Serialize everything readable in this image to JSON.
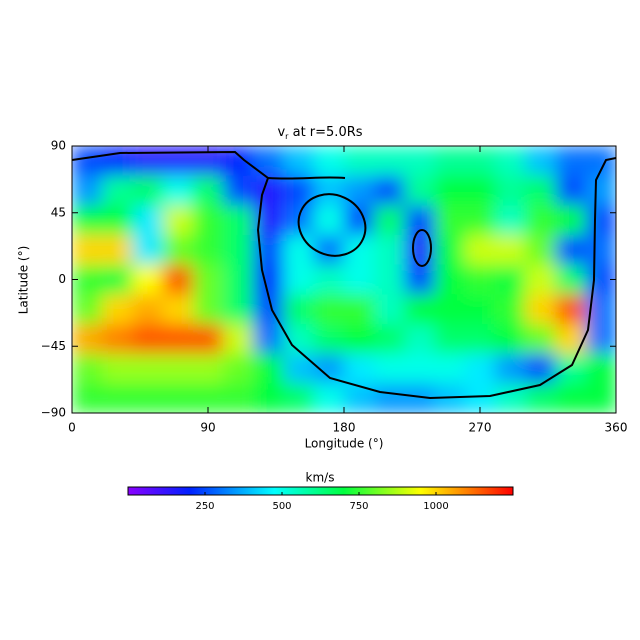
{
  "chart_data": {
    "type": "heatmap",
    "title": "v",
    "title_subscript": "r",
    "title_rest": " at r=5.0Rs",
    "x_label": "Longitude (°)",
    "y_label": "Latitude (°)",
    "colorbar_label": "km/s",
    "xlim": [
      0,
      360
    ],
    "ylim": [
      -90,
      90
    ],
    "xticks": [
      0,
      90,
      180,
      270,
      360
    ],
    "yticks": [
      {
        "value": -90,
        "label": "−90"
      },
      {
        "value": -45,
        "label": "−45"
      },
      0,
      45,
      90
    ],
    "clim": [
      0,
      1250
    ],
    "cticks": [
      250,
      500,
      750,
      1000
    ],
    "colormap": "rainbow",
    "x": [
      10,
      30,
      50,
      70,
      90,
      110,
      130,
      150,
      170,
      190,
      210,
      230,
      250,
      270,
      290,
      310,
      330,
      350
    ],
    "y": [
      80,
      60,
      40,
      20,
      0,
      -20,
      -40,
      -60,
      -80
    ],
    "values": [
      [
        250,
        200,
        150,
        150,
        150,
        200,
        300,
        400,
        500,
        550,
        550,
        550,
        600,
        600,
        550,
        400,
        300,
        300
      ],
      [
        350,
        600,
        650,
        500,
        650,
        250,
        150,
        250,
        400,
        350,
        250,
        600,
        700,
        700,
        600,
        650,
        250,
        350
      ],
      [
        700,
        700,
        450,
        900,
        750,
        650,
        150,
        300,
        500,
        250,
        650,
        250,
        750,
        750,
        550,
        750,
        700,
        250
      ],
      [
        1000,
        1000,
        450,
        800,
        750,
        650,
        250,
        500,
        300,
        500,
        550,
        150,
        700,
        900,
        900,
        800,
        250,
        300
      ],
      [
        750,
        700,
        950,
        1150,
        800,
        650,
        200,
        500,
        550,
        500,
        550,
        250,
        700,
        750,
        700,
        900,
        650,
        250
      ],
      [
        800,
        1000,
        1050,
        1000,
        800,
        650,
        250,
        650,
        750,
        750,
        550,
        700,
        700,
        700,
        750,
        1000,
        1150,
        300
      ],
      [
        1050,
        1100,
        1150,
        1150,
        1150,
        900,
        300,
        550,
        650,
        700,
        650,
        550,
        650,
        650,
        700,
        800,
        1000,
        300
      ],
      [
        800,
        850,
        850,
        850,
        850,
        800,
        700,
        400,
        350,
        450,
        500,
        500,
        500,
        450,
        350,
        250,
        600,
        700
      ],
      [
        750,
        750,
        750,
        750,
        750,
        750,
        700,
        650,
        500,
        400,
        350,
        350,
        400,
        450,
        550,
        650,
        700,
        700
      ]
    ]
  }
}
